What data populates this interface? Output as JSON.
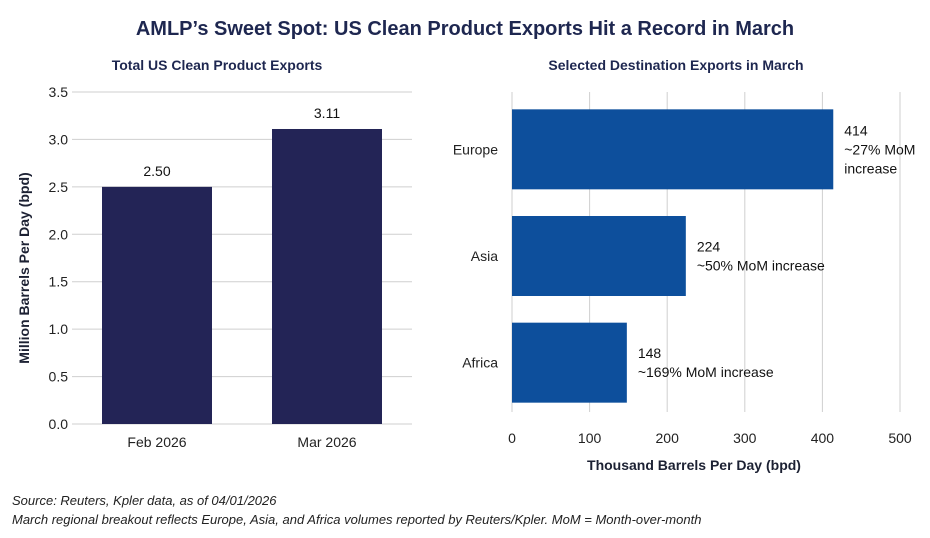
{
  "title": "AMLP’s Sweet Spot: US Clean Product Exports Hit a Record in March",
  "footnotes": {
    "source": "Source: Reuters, Kpler data, as of 04/01/2026",
    "note": "March regional breakout reflects Europe, Asia, and Africa volumes reported by Reuters/Kpler. MoM = Month-over-month"
  },
  "colors": {
    "left_bar": "#232456",
    "right_bar": "#0d4f9c",
    "title": "#1e2750"
  },
  "chart_data": [
    {
      "type": "bar",
      "title": "Total US Clean Product Exports",
      "categories": [
        "Feb 2026",
        "Mar 2026"
      ],
      "values": [
        2.5,
        3.11
      ],
      "data_labels": [
        "2.50",
        "3.11"
      ],
      "ylabel": "Million Barrels Per Day (bpd)",
      "xlabel": "",
      "ylim": [
        0,
        3.5
      ],
      "yticks": [
        "0.0",
        "0.5",
        "1.0",
        "1.5",
        "2.0",
        "2.5",
        "3.0",
        "3.5"
      ],
      "grid": true
    },
    {
      "type": "bar",
      "orientation": "horizontal",
      "title": "Selected Destination Exports in March",
      "categories": [
        "Europe",
        "Asia",
        "Africa"
      ],
      "values": [
        414,
        224,
        148
      ],
      "annotations": [
        [
          "414",
          "~27% MoM",
          "increase"
        ],
        [
          "224",
          "~50% MoM increase"
        ],
        [
          "148",
          "~169% MoM increase"
        ]
      ],
      "xlabel": "Thousand Barrels Per Day (bpd)",
      "ylabel": "",
      "xlim": [
        0,
        500
      ],
      "xticks": [
        "0",
        "100",
        "200",
        "300",
        "400",
        "500"
      ],
      "grid": true
    }
  ]
}
